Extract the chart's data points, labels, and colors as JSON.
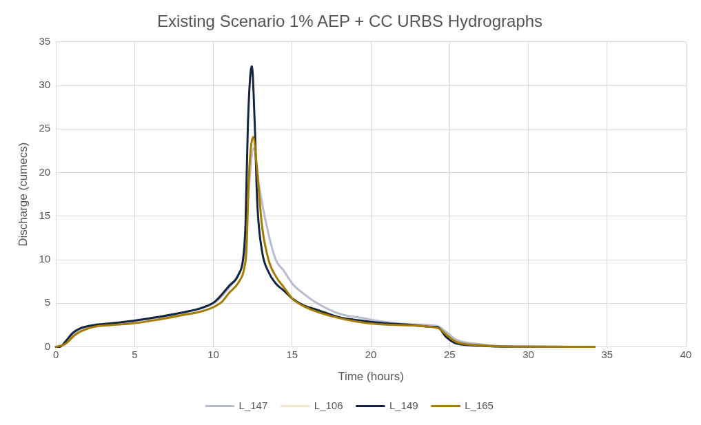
{
  "chart_data": {
    "type": "line",
    "title": "Existing Scenario 1% AEP + CC URBS Hydrographs",
    "xlabel": "Time (hours)",
    "ylabel": "Discharge (cumecs)",
    "xlim": [
      0,
      40
    ],
    "xticks": [
      0,
      5,
      10,
      15,
      20,
      25,
      30,
      35,
      40
    ],
    "ylim": [
      0,
      35
    ],
    "yticks": [
      0,
      5,
      10,
      15,
      20,
      25,
      30,
      35
    ],
    "grid": true,
    "legend": "bottom",
    "marker": "none",
    "line_style": "solid",
    "series": [
      {
        "name": "L_147",
        "color": "#b8bccf",
        "x": [
          0,
          0.3,
          0.6,
          1.1,
          1.5,
          2.4,
          3.45,
          4.9,
          6.4,
          7.9,
          9.3,
          10.1,
          11,
          11.6,
          11.95,
          12.2,
          12.56,
          12.93,
          13.37,
          13.96,
          14.45,
          15.04,
          15.8,
          16.5,
          18,
          19.5,
          21,
          22.4,
          24.2,
          24.8,
          25.4,
          26.9,
          28,
          30,
          34.2
        ],
        "values": [
          0,
          0.05,
          0.5,
          1.5,
          2,
          2.4,
          2.65,
          2.95,
          3.35,
          3.85,
          4.45,
          5.1,
          6.8,
          8.4,
          10.5,
          17,
          22.8,
          18.2,
          14,
          10,
          8.8,
          7.2,
          6,
          5.1,
          3.8,
          3.3,
          2.85,
          2.6,
          2.4,
          1.7,
          0.85,
          0.3,
          0.1,
          0.03,
          0
        ]
      },
      {
        "name": "L_106",
        "color": "#f3e6c8"
      },
      {
        "name": "L_149",
        "color": "#14263f",
        "x": [
          0,
          0.3,
          0.6,
          1.07,
          1.5,
          2.4,
          3.45,
          4.9,
          6.4,
          7.9,
          9.3,
          10.1,
          11,
          11.6,
          11.9,
          12.04,
          12.19,
          12.44,
          12.63,
          12.78,
          13.08,
          13.5,
          14,
          14.45,
          15.04,
          15.8,
          16.5,
          18,
          19.5,
          21,
          22.4,
          23.9,
          24.2,
          24.8,
          25.4,
          26.9,
          28,
          30,
          34.2
        ],
        "values": [
          0,
          0.05,
          0.6,
          1.6,
          2.1,
          2.5,
          2.7,
          3,
          3.4,
          3.9,
          4.5,
          5.2,
          7,
          8.3,
          10.3,
          14,
          25.4,
          32.2,
          25.4,
          16.8,
          11.1,
          8.6,
          7.2,
          6.5,
          5.5,
          4.7,
          4.3,
          3.4,
          3,
          2.7,
          2.55,
          2.3,
          2.3,
          1.1,
          0.4,
          0.15,
          0.05,
          0.02,
          0
        ]
      },
      {
        "name": "L_165",
        "color": "#a67c00",
        "x": [
          0,
          0.6,
          1.2,
          1.67,
          2.4,
          3.45,
          4.9,
          6.4,
          7.9,
          9.3,
          10.1,
          10.56,
          11,
          11.6,
          11.97,
          12.1,
          12.26,
          12.53,
          12.78,
          13.08,
          13.5,
          14,
          14.45,
          15.04,
          15.8,
          18,
          21,
          24.2,
          24.8,
          25.4,
          26.9,
          28,
          30,
          34.2
        ],
        "values": [
          0,
          0.35,
          1.35,
          1.85,
          2.3,
          2.5,
          2.7,
          3.1,
          3.6,
          4.1,
          4.65,
          5.2,
          6.2,
          7.4,
          9.1,
          11.1,
          19.7,
          24.1,
          20.2,
          14,
          10,
          8,
          6.9,
          5.5,
          4.6,
          3.3,
          2.55,
          2.2,
          1.4,
          0.6,
          0.2,
          0.06,
          0.02,
          0
        ]
      }
    ]
  }
}
